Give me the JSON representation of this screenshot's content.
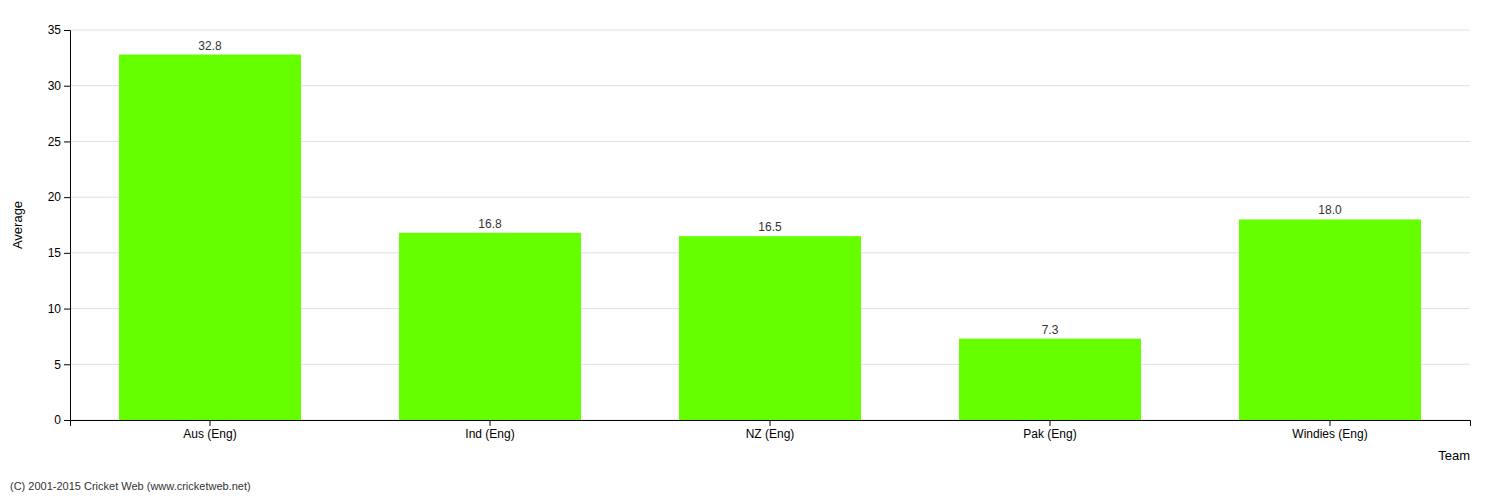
{
  "chart_data": {
    "type": "bar",
    "categories": [
      "Aus (Eng)",
      "Ind (Eng)",
      "NZ (Eng)",
      "Pak (Eng)",
      "Windies (Eng)"
    ],
    "values": [
      32.8,
      16.8,
      16.5,
      7.3,
      18.0
    ],
    "value_labels": [
      "32.8",
      "16.8",
      "16.5",
      "7.3",
      "18.0"
    ],
    "data_labels": true,
    "color": "#66ff00",
    "x_label": "Team",
    "y_label": "Average",
    "ylim": [
      0,
      35
    ],
    "yticks": [
      0,
      5,
      10,
      15,
      20,
      25,
      30,
      35
    ],
    "grid": true,
    "annotations": [
      "(C) 2001-2015 Cricket Web (www.cricketweb.net)"
    ]
  }
}
